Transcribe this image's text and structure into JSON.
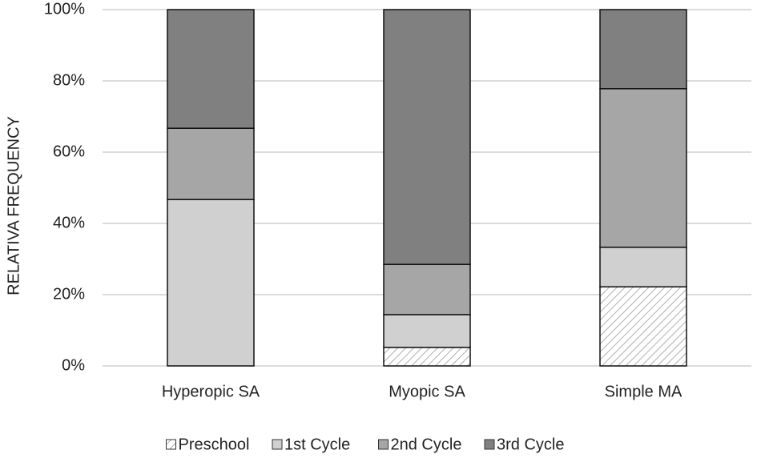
{
  "chart_data": {
    "type": "stacked_bar",
    "y_label": "RELATIVA FREQUENCY",
    "categories": [
      "Hyperopic SA",
      "Myopic SA",
      "Simple MA"
    ],
    "series": [
      {
        "name": "Preschool",
        "color": "#9a9a9a",
        "hatch": true,
        "values": [
          0,
          5.2,
          22.2
        ]
      },
      {
        "name": "1st Cycle",
        "color": "#d0d0d0",
        "values": [
          46.7,
          9.2,
          11.1
        ]
      },
      {
        "name": "2nd Cycle",
        "color": "#a6a6a6",
        "values": [
          20,
          14.1,
          44.5
        ]
      },
      {
        "name": "3rd Cycle",
        "color": "#808080",
        "values": [
          33.3,
          71.5,
          22.2
        ]
      }
    ],
    "ylim": [
      0,
      100
    ],
    "yticks": [
      {
        "value": 0,
        "label": "0%"
      },
      {
        "value": 20,
        "label": "20%"
      },
      {
        "value": 40,
        "label": "40%"
      },
      {
        "value": 60,
        "label": "60%"
      },
      {
        "value": 80,
        "label": "80%"
      },
      {
        "value": 100,
        "label": "100%"
      }
    ],
    "grid": true,
    "legend": "bottom"
  }
}
